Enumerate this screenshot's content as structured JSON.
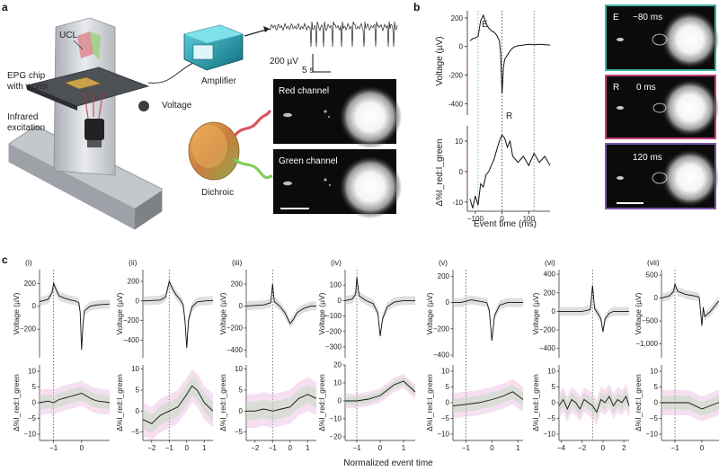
{
  "panel_labels": {
    "a": "a",
    "b": "b",
    "c": "c"
  },
  "panel_a": {
    "labels": {
      "ucl": "UCL",
      "epg": [
        "EPG chip",
        "with worm"
      ],
      "infrared": [
        "Infrared",
        "excitation"
      ],
      "voltage": "Voltage",
      "amplifier": "Amplifier",
      "dichroic": "Dichroic",
      "red_channel": "Red channel",
      "green_channel": "Green channel",
      "scale_v": "200 µV",
      "scale_t": "5 s"
    },
    "colors": {
      "red": "#d8555d",
      "green": "#7fcf5a",
      "amp": "#1c8fa3"
    }
  },
  "panel_b": {
    "ylabel_top": "Voltage (µV)",
    "ylabel_bottom": "Δ%I_red:I_green",
    "xlabel": "Event time (ms)",
    "marker_e": "E",
    "marker_r": "R",
    "images": [
      {
        "letter": "E",
        "time": "−80 ms",
        "border": "#3fb3a8"
      },
      {
        "letter": "R",
        "time": "0 ms",
        "border": "#c8407a"
      },
      {
        "letter": "",
        "time": "120 ms",
        "border": "#7a55a8"
      }
    ]
  },
  "panel_c": {
    "xlabel": "Normalized event time",
    "ylabel_top": "Voltage (µV)",
    "ylabel_bottom": "Δ%I_red:I_green"
  },
  "chart_data": [
    {
      "type": "line",
      "id": "b-voltage",
      "x": [
        -120,
        -110,
        -100,
        -90,
        -80,
        -70,
        -60,
        -50,
        -40,
        -30,
        -20,
        -10,
        -5,
        0,
        5,
        10,
        20,
        30,
        40,
        50,
        60,
        80,
        100,
        120,
        140,
        160,
        180
      ],
      "series": [
        {
          "values": [
            40,
            55,
            60,
            70,
            180,
            220,
            160,
            130,
            110,
            100,
            80,
            40,
            -50,
            -330,
            -150,
            -90,
            -60,
            -30,
            -10,
            0,
            5,
            10,
            15,
            12,
            15,
            12,
            10
          ]
        }
      ],
      "ylim": [
        -480,
        250
      ],
      "yticks": [
        200,
        0,
        -200,
        -400
      ],
      "xlim": [
        -130,
        180
      ],
      "vlines": [
        -90,
        0,
        120
      ],
      "xlabel": "Event time (ms)",
      "ylabel": "Voltage (µV)"
    },
    {
      "type": "line",
      "id": "b-ratio",
      "x": [
        -120,
        -110,
        -100,
        -90,
        -80,
        -70,
        -60,
        -50,
        -40,
        -30,
        -20,
        -10,
        0,
        10,
        20,
        30,
        40,
        60,
        80,
        100,
        120,
        140,
        160,
        180
      ],
      "series": [
        {
          "values": [
            -9,
            -12,
            -8,
            -11,
            -4,
            -5,
            -1,
            0,
            2,
            4,
            7,
            10,
            12,
            11,
            8,
            10,
            5,
            3,
            5,
            2,
            6,
            3,
            5,
            2
          ]
        }
      ],
      "ylim": [
        -13,
        15
      ],
      "yticks": [
        10,
        0,
        -10
      ],
      "xticks": [
        -100,
        0,
        100
      ],
      "xlim": [
        -130,
        180
      ],
      "vlines": [
        -90,
        0,
        120
      ],
      "ylabel": "Δ%I_red:I_green"
    },
    {
      "type": "line",
      "id": "c-panels",
      "xlabel": "Normalized event time",
      "panels": [
        {
          "label": "(i)",
          "xlim": [
            -1.5,
            1.0
          ],
          "xticks": [
            -1,
            0
          ],
          "vline": -1,
          "v_ylim": [
            -450,
            320
          ],
          "v_yticks": [
            200,
            0,
            -200
          ],
          "r_ylim": [
            -12,
            12
          ],
          "r_yticks": [
            10,
            5,
            0,
            -5,
            -10
          ],
          "v_x": [
            -1.5,
            -1.2,
            -1.05,
            -1.0,
            -0.9,
            -0.8,
            -0.6,
            -0.4,
            -0.2,
            -0.1,
            -0.05,
            0.0,
            0.05,
            0.1,
            0.3,
            0.5,
            0.7,
            1.0
          ],
          "v_y": [
            40,
            60,
            120,
            200,
            140,
            90,
            70,
            55,
            45,
            30,
            -50,
            -380,
            -150,
            -40,
            0,
            10,
            15,
            20
          ],
          "r_x": [
            -1.5,
            -1.2,
            -1.0,
            -0.8,
            -0.6,
            -0.4,
            -0.2,
            0.0,
            0.2,
            0.4,
            0.6,
            0.8,
            1.0
          ],
          "r_y": [
            0,
            0.5,
            0,
            1,
            1.5,
            2,
            2.5,
            3,
            2,
            1,
            0.5,
            0.3,
            0
          ]
        },
        {
          "label": "(ii)",
          "xlim": [
            -2.5,
            1.5
          ],
          "xticks": [
            -2,
            -1,
            0,
            1
          ],
          "vline": -1,
          "v_ylim": [
            -580,
            320
          ],
          "v_yticks": [
            200,
            0,
            -200,
            -400
          ],
          "r_ylim": [
            -7,
            11
          ],
          "r_yticks": [
            10,
            5,
            0,
            -5
          ],
          "v_x": [
            -2.5,
            -2.0,
            -1.5,
            -1.2,
            -1.0,
            -0.8,
            -0.6,
            -0.4,
            -0.2,
            -0.1,
            0.0,
            0.1,
            0.3,
            0.6,
            1.0,
            1.5
          ],
          "v_y": [
            0,
            5,
            10,
            40,
            200,
            120,
            60,
            20,
            -40,
            -200,
            -480,
            -200,
            -60,
            -10,
            0,
            5
          ],
          "r_x": [
            -2.5,
            -2.0,
            -1.5,
            -1.0,
            -0.5,
            0.0,
            0.3,
            0.6,
            1.0,
            1.5
          ],
          "r_y": [
            -2,
            -3,
            -1,
            0,
            1,
            4,
            6,
            5,
            2,
            0
          ]
        },
        {
          "label": "(iii)",
          "xlim": [
            -2.5,
            1.5
          ],
          "xticks": [
            -2,
            -1,
            0,
            1
          ],
          "vline": -1,
          "v_ylim": [
            -470,
            330
          ],
          "v_yticks": [
            200,
            0,
            -200,
            -400
          ],
          "r_ylim": [
            -7,
            11
          ],
          "r_yticks": [
            10,
            5,
            0,
            -5
          ],
          "v_x": [
            -2.5,
            -2.0,
            -1.5,
            -1.1,
            -1.0,
            -0.9,
            -0.6,
            -0.3,
            0.0,
            0.2,
            0.4,
            0.8,
            1.2,
            1.5
          ],
          "v_y": [
            0,
            5,
            10,
            30,
            200,
            40,
            0,
            -60,
            -160,
            -120,
            -60,
            -20,
            0,
            0
          ],
          "r_x": [
            -2.5,
            -2.0,
            -1.5,
            -1.0,
            -0.5,
            0.0,
            0.5,
            1.0,
            1.5
          ],
          "r_y": [
            0,
            0,
            0.5,
            0,
            0.5,
            1,
            3,
            4,
            3
          ]
        },
        {
          "label": "(iv)",
          "xlim": [
            -1.5,
            1.5
          ],
          "xticks": [
            -1,
            0,
            1
          ],
          "vline": -1,
          "v_ylim": [
            -370,
            200
          ],
          "v_yticks": [
            100,
            0,
            -100,
            -200,
            -300
          ],
          "r_ylim": [
            -22,
            20
          ],
          "r_yticks": [
            20,
            10,
            0,
            -10,
            -20
          ],
          "v_x": [
            -1.5,
            -1.2,
            -1.05,
            -1.0,
            -0.9,
            -0.6,
            -0.3,
            -0.1,
            0.0,
            0.1,
            0.3,
            0.6,
            1.0,
            1.5
          ],
          "v_y": [
            0,
            10,
            40,
            150,
            30,
            0,
            -20,
            -80,
            -230,
            -120,
            -40,
            -10,
            0,
            0
          ],
          "r_x": [
            -1.5,
            -1.0,
            -0.5,
            0.0,
            0.3,
            0.6,
            1.0,
            1.5
          ],
          "r_y": [
            0,
            0,
            1,
            3,
            6,
            9,
            11,
            5
          ]
        },
        {
          "label": "(v)",
          "xlim": [
            -1.5,
            1.2
          ],
          "xticks": [
            -1,
            0,
            1
          ],
          "vline": -1,
          "v_ylim": [
            -420,
            250
          ],
          "v_yticks": [
            200,
            0,
            -200,
            -400
          ],
          "r_ylim": [
            -12,
            12
          ],
          "r_yticks": [
            10,
            5,
            0,
            -5,
            -10
          ],
          "v_x": [
            -1.5,
            -1.2,
            -1.0,
            -0.8,
            -0.5,
            -0.2,
            -0.1,
            0.0,
            0.1,
            0.3,
            0.6,
            1.0,
            1.2
          ],
          "v_y": [
            0,
            0,
            10,
            20,
            10,
            0,
            -60,
            -290,
            -100,
            -20,
            0,
            0,
            0
          ],
          "r_x": [
            -1.5,
            -1.0,
            -0.5,
            0.0,
            0.4,
            0.8,
            1.2
          ],
          "r_y": [
            -1,
            -0.5,
            0,
            1,
            2,
            3.5,
            1
          ]
        },
        {
          "label": "(vi)",
          "xlim": [
            -4.2,
            2.5
          ],
          "xticks": [
            -4,
            -2,
            0,
            2
          ],
          "vline": -1,
          "v_ylim": [
            -500,
            450
          ],
          "v_yticks": [
            400,
            200,
            0,
            -200,
            -400
          ],
          "r_ylim": [
            -12,
            12
          ],
          "r_yticks": [
            10,
            5,
            0,
            -5,
            -10
          ],
          "v_x": [
            -4.2,
            -3.0,
            -2.0,
            -1.2,
            -1.0,
            -0.8,
            -0.5,
            -0.2,
            0.0,
            0.2,
            0.6,
            1.0,
            2.0,
            2.5
          ],
          "v_y": [
            0,
            0,
            0,
            20,
            280,
            30,
            -20,
            -80,
            -220,
            -80,
            -20,
            0,
            0,
            0
          ],
          "r_x": [
            -4.2,
            -3.8,
            -3.4,
            -3.0,
            -2.6,
            -2.2,
            -1.8,
            -1.4,
            -1.0,
            -0.6,
            -0.2,
            0.2,
            0.6,
            1.0,
            1.4,
            1.8,
            2.2,
            2.5
          ],
          "r_y": [
            -1,
            1,
            -2,
            1,
            0,
            -2,
            1,
            0,
            -1,
            -3,
            1,
            0,
            2,
            -1,
            1,
            0,
            2,
            -1
          ]
        },
        {
          "label": "(vii)",
          "xlim": [
            -1.5,
            1.1
          ],
          "xticks": [
            -1,
            0,
            1
          ],
          "vline": -1,
          "v_ylim": [
            -1300,
            620
          ],
          "v_yticks": [
            500,
            0,
            -500,
            -1000
          ],
          "r_ylim": [
            -12,
            12
          ],
          "r_yticks": [
            10,
            5,
            0,
            -5,
            -10
          ],
          "v_x": [
            -1.5,
            -1.2,
            -1.05,
            -1.0,
            -0.9,
            -0.6,
            -0.3,
            -0.1,
            0.0,
            0.05,
            0.1,
            0.3,
            0.6,
            0.8,
            1.1
          ],
          "v_y": [
            0,
            50,
            150,
            300,
            150,
            80,
            50,
            20,
            -600,
            -200,
            -400,
            -300,
            -80,
            -20,
            0
          ],
          "r_x": [
            -1.5,
            -1.0,
            -0.5,
            0.0,
            0.3,
            0.6,
            1.1
          ],
          "r_y": [
            0,
            0,
            0,
            -2,
            -1,
            0,
            1
          ]
        }
      ]
    }
  ]
}
